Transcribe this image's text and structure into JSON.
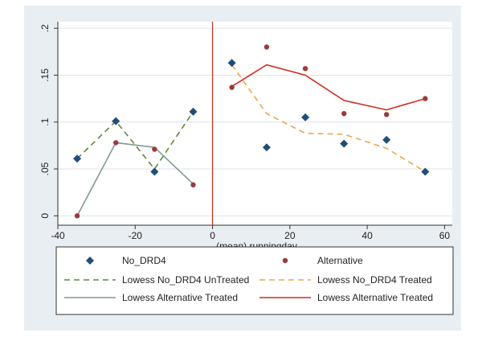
{
  "chart_data": {
    "type": "scatter",
    "xlabel": "(mean) runningday",
    "ylabel": "",
    "xlim": [
      -40,
      62
    ],
    "ylim": [
      -0.01,
      0.207
    ],
    "x_ticks": [
      -40,
      -20,
      0,
      20,
      40,
      60
    ],
    "x_tick_labels": [
      "-40",
      "-20",
      "0",
      "20",
      "40",
      "60"
    ],
    "y_ticks": [
      0,
      0.05,
      0.1,
      0.15,
      0.2
    ],
    "y_tick_labels": [
      "0",
      ".05",
      ".1",
      ".15",
      ".2"
    ],
    "grid": true,
    "cutoff_x": 0,
    "legend_position": "bottom",
    "series": [
      {
        "name": "No_DRD4",
        "kind": "marker",
        "marker": "diamond",
        "color": "#1f4e79",
        "x": [
          -35,
          -25,
          -15,
          -5,
          5,
          14,
          24,
          34,
          45,
          55
        ],
        "y": [
          0.061,
          0.101,
          0.047,
          0.111,
          0.163,
          0.073,
          0.105,
          0.077,
          0.081,
          0.047
        ]
      },
      {
        "name": "Alternative",
        "kind": "marker",
        "marker": "dot",
        "color": "#9a3b3b",
        "x": [
          -35,
          -25,
          -15,
          -5,
          5,
          14,
          24,
          34,
          45,
          55
        ],
        "y": [
          0.0,
          0.078,
          0.071,
          0.033,
          0.137,
          0.18,
          0.157,
          0.109,
          0.108,
          0.125
        ]
      },
      {
        "name": "Lowess No_DRD4 UnTreated",
        "kind": "line",
        "dash": "7,5",
        "color": "#5d8a3a",
        "x": [
          -35,
          -25,
          -15,
          -5
        ],
        "y": [
          0.061,
          0.101,
          0.05,
          0.111
        ]
      },
      {
        "name": "Lowess No_DRD4 Treated",
        "kind": "line",
        "dash": "7,5",
        "color": "#f0a64e",
        "x": [
          5,
          14,
          24,
          34,
          45,
          55
        ],
        "y": [
          0.161,
          0.109,
          0.088,
          0.087,
          0.072,
          0.047
        ]
      },
      {
        "name": "Lowess Alternative Treated",
        "kind": "line",
        "dash": "",
        "color": "#7f9a8f",
        "x": [
          -35,
          -25,
          -15,
          -5
        ],
        "y": [
          0.0,
          0.078,
          0.073,
          0.034
        ]
      },
      {
        "name": "Lowess Alternative Treated",
        "kind": "line",
        "dash": "",
        "color": "#d12b1f",
        "x": [
          5,
          14,
          24,
          34,
          45,
          55
        ],
        "y": [
          0.138,
          0.161,
          0.15,
          0.123,
          0.113,
          0.125
        ]
      }
    ]
  },
  "colors": {
    "frame_bg": "#e9eef3",
    "plot_bg": "#ffffff",
    "grid": "#dde4ea",
    "cutoff_line": "#c0392b"
  }
}
